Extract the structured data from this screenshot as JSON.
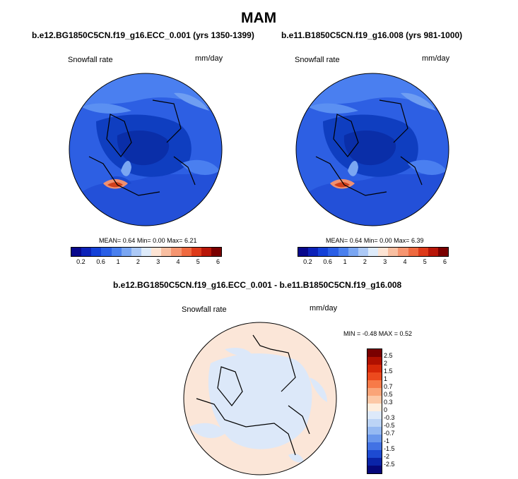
{
  "page_title": "MAM",
  "panels": [
    {
      "title": "b.e12.BG1850C5CN.f19_g16.ECC_0.001 (yrs 1350-1399)",
      "variable": "Snowfall rate",
      "units": "mm/day",
      "stats": {
        "mean": "0.64",
        "min": "0.00",
        "max": "6.21"
      }
    },
    {
      "title": "b.e11.B1850C5CN.f19_g16.008 (yrs 981-1000)",
      "variable": "Snowfall rate",
      "units": "mm/day",
      "stats": {
        "mean": "0.64",
        "min": "0.00",
        "max": "6.39"
      }
    }
  ],
  "stat_labels": {
    "mean": "MEAN=",
    "min": "Min=",
    "max": "Max="
  },
  "diff_panel": {
    "title": "b.e12.BG1850C5CN.f19_g16.ECC_0.001 - b.e11.B1850C5CN.f19_g16.008",
    "variable": "Snowfall rate",
    "units": "mm/day",
    "minmax_text": "MIN = -0.48 MAX =  0.52"
  },
  "colorbar_top": {
    "colors": [
      "#08088c",
      "#0c22b8",
      "#1441d8",
      "#2a5fe6",
      "#4a80ee",
      "#7aa6f2",
      "#acc9f6",
      "#deebfa",
      "#fde4d4",
      "#f9bfa1",
      "#f69570",
      "#ef6a40",
      "#de3a1a",
      "#b81608",
      "#7a0000"
    ],
    "tick_labels": [
      "0.2",
      "0.6",
      "1",
      "2",
      "3",
      "4",
      "5",
      "6"
    ]
  },
  "colorbar_diff": {
    "colors": [
      "#7a0000",
      "#b01000",
      "#d62808",
      "#ec4a1e",
      "#f77a48",
      "#faa478",
      "#fcc8a6",
      "#feeede",
      "#dde9fa",
      "#bcd4f6",
      "#95b9f2",
      "#6a97ec",
      "#4272e4",
      "#1d4ad2",
      "#0a24a8",
      "#06087a"
    ],
    "tick_labels": [
      "2.5",
      "2",
      "1.5",
      "1",
      "0.7",
      "0.5",
      "0.3",
      "0",
      "-0.3",
      "-0.5",
      "-0.7",
      "-1",
      "-1.5",
      "-2",
      "-2.5"
    ]
  }
}
